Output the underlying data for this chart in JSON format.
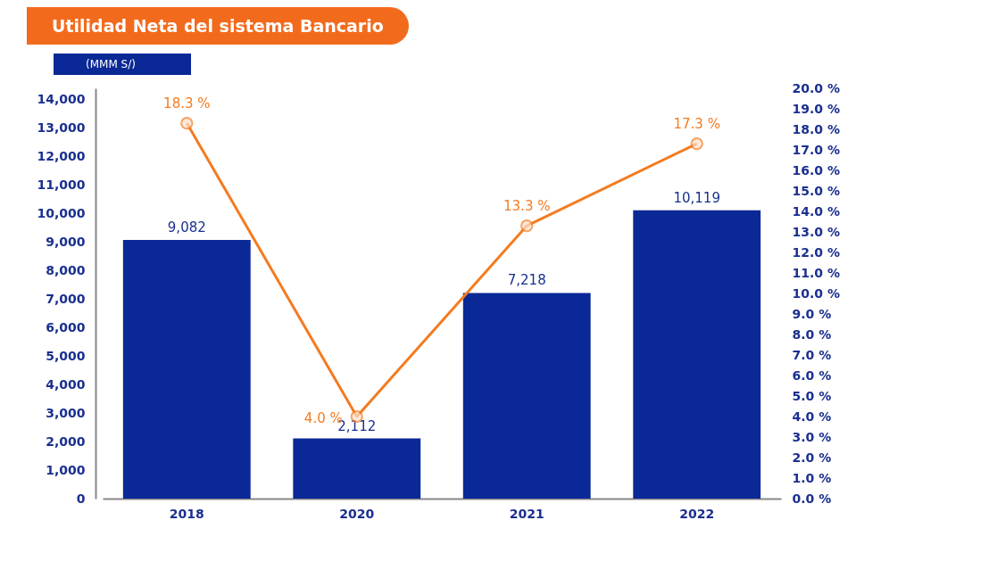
{
  "chart_data": {
    "type": "bar",
    "title": "Utilidad Neta del sistema Bancario",
    "subtitle": "(MMM S/)",
    "categories": [
      "2018",
      "2020",
      "2021",
      "2022"
    ],
    "series": [
      {
        "color": "#0a2896",
        "values": [
          9082,
          2112,
          7218,
          10119
        ],
        "value_labels": [
          "9,082",
          "2,112",
          "7,218",
          "10,119"
        ]
      },
      {
        "type": "line",
        "axis": "y2",
        "color": "#f47b20",
        "values": [
          18.3,
          4.0,
          13.3,
          17.3
        ],
        "value_labels": [
          "18.3 %",
          "4.0 %",
          "13.3 %",
          "17.3 %"
        ]
      }
    ],
    "ylim": [
      0,
      14400
    ],
    "yticks": [
      {
        "value": 0,
        "label": "0"
      },
      {
        "value": 1000,
        "label": "1,000"
      },
      {
        "value": 2000,
        "label": "2,000"
      },
      {
        "value": 3000,
        "label": "3,000"
      },
      {
        "value": 4000,
        "label": "4,000"
      },
      {
        "value": 5000,
        "label": "5,000"
      },
      {
        "value": 6000,
        "label": "6,000"
      },
      {
        "value": 7000,
        "label": "7,000"
      },
      {
        "value": 8000,
        "label": "8,000"
      },
      {
        "value": 9000,
        "label": "9,000"
      },
      {
        "value": 10000,
        "label": "10,000"
      },
      {
        "value": 11000,
        "label": "11,000"
      },
      {
        "value": 12000,
        "label": "12,000"
      },
      {
        "value": 13000,
        "label": "13,000"
      },
      {
        "value": 14000,
        "label": "14,000"
      }
    ],
    "y2lim": [
      0,
      20
    ],
    "y2ticks": [
      {
        "value": 0,
        "label": "0.0 %"
      },
      {
        "value": 1,
        "label": "1.0 %"
      },
      {
        "value": 2,
        "label": "2.0 %"
      },
      {
        "value": 3,
        "label": "3.0 %"
      },
      {
        "value": 4,
        "label": "4.0 %"
      },
      {
        "value": 5,
        "label": "5.0 %"
      },
      {
        "value": 6,
        "label": "6.0 %"
      },
      {
        "value": 7,
        "label": "7.0 %"
      },
      {
        "value": 8,
        "label": "8.0 %"
      },
      {
        "value": 9,
        "label": "9.0 %"
      },
      {
        "value": 10,
        "label": "10.0 %"
      },
      {
        "value": 11,
        "label": "11.0 %"
      },
      {
        "value": 12,
        "label": "12.0 %"
      },
      {
        "value": 13,
        "label": "13.0 %"
      },
      {
        "value": 14,
        "label": "14.0 %"
      },
      {
        "value": 15,
        "label": "15.0 %"
      },
      {
        "value": 16,
        "label": "16.0 %"
      },
      {
        "value": 17,
        "label": "17.0 %"
      },
      {
        "value": 18,
        "label": "18.0 %"
      },
      {
        "value": 19,
        "label": "19.0 %"
      },
      {
        "value": 20,
        "label": "20.0 %"
      }
    ],
    "marker": "circle",
    "grid": false
  }
}
